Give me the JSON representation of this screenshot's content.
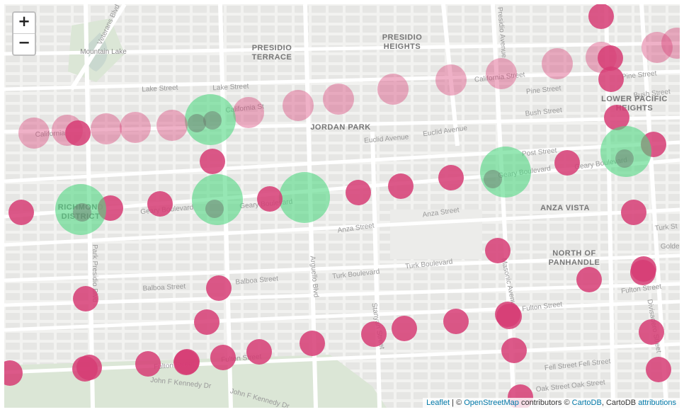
{
  "zoom": {
    "in_label": "+",
    "out_label": "−"
  },
  "attribution": {
    "leaflet": "Leaflet",
    "sep": " | © ",
    "osm": "OpenStreetMap",
    "contributors": " contributors © ",
    "carto": "CartoDB",
    "comma": ", CartoDB ",
    "attributions": "attributions"
  },
  "neighborhoods": [
    "PRESIDIO",
    "TERRACE",
    "PRESIDIO",
    "HEIGHTS",
    "JORDAN PARK",
    "LOWER PACIFIC",
    "HEIGHTS",
    "ANZA VISTA",
    "NORTH OF",
    "PANHANDLE",
    "RICHMOND",
    "DISTRICT"
  ],
  "streets": [
    "Mountain Lake",
    "Veterans Blvd",
    "Lake Street",
    "California St",
    "California Street",
    "Pine Street",
    "Bush Street",
    "Euclid Avenue",
    "Post Street",
    "Geary Boulevard",
    "Anza Street",
    "Turk Boulevard",
    "Balboa Street",
    "Fulton Street",
    "John F Kennedy Dr",
    "Oak Street",
    "Fell Street",
    "Golden",
    "Turk St",
    "Park Presidio Blvd",
    "Arguello Blvd",
    "Stanyan Street",
    "Masonic Avenue",
    "Divisadero Street",
    "Presidio Avenue"
  ],
  "colors": {
    "pink": "#d63c74",
    "green": "#50d782",
    "road": "#ffffff",
    "land": "#f2f2f0",
    "park": "#dbe6d6"
  },
  "markers": [
    {
      "type": "pink",
      "size": 0.5,
      "opacity": 0.85
    },
    {
      "type": "pink",
      "size": 0.6,
      "opacity": 0.4
    },
    {
      "type": "green",
      "size": 1.0,
      "opacity": 0.6
    },
    {
      "type": "pink",
      "size": 0.35,
      "opacity": 0.85
    }
  ]
}
